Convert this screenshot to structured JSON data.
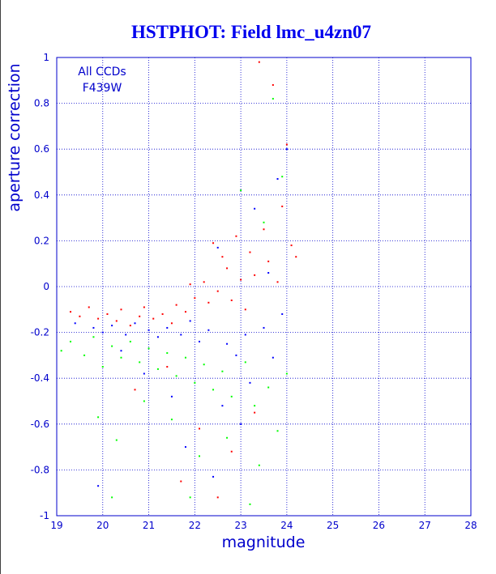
{
  "chart_data": {
    "type": "scatter",
    "title": "HSTPHOT: Field lmc_u4zn07",
    "xlabel": "magnitude",
    "ylabel": "aperture correction",
    "xlim": [
      19,
      28
    ],
    "ylim": [
      -1,
      1
    ],
    "x_ticks": [
      19,
      20,
      21,
      22,
      23,
      24,
      25,
      26,
      27,
      28
    ],
    "y_ticks": [
      -1,
      -0.8,
      -0.6,
      -0.4,
      -0.2,
      0,
      0.2,
      0.4,
      0.6,
      0.8,
      1
    ],
    "x_tick_labels": [
      "19",
      "20",
      "21",
      "22",
      "23",
      "24",
      "25",
      "26",
      "27",
      "28"
    ],
    "y_tick_labels": [
      "-1",
      "-0.8",
      "-0.6",
      "-0.4",
      "-0.2",
      "0",
      "0.2",
      "0.4",
      "0.6",
      "0.8",
      "1"
    ],
    "grid": true,
    "annotations": [
      "All CCDs",
      "F439W"
    ],
    "series_colors": [
      "#ff0000",
      "#0000ff",
      "#00ff00"
    ],
    "series": [
      {
        "points": [
          [
            19.3,
            -0.11
          ],
          [
            19.5,
            -0.13
          ],
          [
            19.7,
            -0.09
          ],
          [
            19.9,
            -0.14
          ],
          [
            20.1,
            -0.12
          ],
          [
            20.3,
            -0.15
          ],
          [
            20.4,
            -0.1
          ],
          [
            20.6,
            -0.17
          ],
          [
            20.8,
            -0.13
          ],
          [
            20.9,
            -0.09
          ],
          [
            21.1,
            -0.14
          ],
          [
            21.3,
            -0.12
          ],
          [
            21.5,
            -0.16
          ],
          [
            21.6,
            -0.08
          ],
          [
            21.8,
            -0.11
          ],
          [
            21.9,
            0.01
          ],
          [
            22.0,
            -0.05
          ],
          [
            22.2,
            0.02
          ],
          [
            22.3,
            -0.07
          ],
          [
            22.4,
            0.19
          ],
          [
            22.5,
            -0.02
          ],
          [
            22.6,
            0.13
          ],
          [
            22.7,
            0.08
          ],
          [
            22.8,
            -0.06
          ],
          [
            22.9,
            0.22
          ],
          [
            23.0,
            0.03
          ],
          [
            23.1,
            -0.1
          ],
          [
            23.2,
            0.15
          ],
          [
            23.3,
            0.05
          ],
          [
            23.4,
            0.98
          ],
          [
            23.5,
            0.25
          ],
          [
            23.6,
            0.11
          ],
          [
            23.7,
            0.88
          ],
          [
            23.8,
            0.02
          ],
          [
            23.9,
            0.35
          ],
          [
            24.0,
            0.62
          ],
          [
            24.1,
            0.18
          ],
          [
            24.2,
            0.13
          ],
          [
            22.1,
            -0.62
          ],
          [
            21.7,
            -0.85
          ],
          [
            22.8,
            -0.72
          ],
          [
            23.3,
            -0.55
          ],
          [
            21.4,
            -0.35
          ],
          [
            20.7,
            -0.45
          ],
          [
            22.5,
            -0.92
          ]
        ]
      },
      {
        "points": [
          [
            19.4,
            -0.16
          ],
          [
            19.8,
            -0.18
          ],
          [
            20.0,
            -0.2
          ],
          [
            20.2,
            -0.17
          ],
          [
            20.5,
            -0.21
          ],
          [
            20.7,
            -0.16
          ],
          [
            21.0,
            -0.19
          ],
          [
            21.2,
            -0.22
          ],
          [
            21.4,
            -0.18
          ],
          [
            21.7,
            -0.21
          ],
          [
            21.9,
            -0.15
          ],
          [
            22.1,
            -0.24
          ],
          [
            22.3,
            -0.19
          ],
          [
            22.5,
            0.17
          ],
          [
            22.7,
            -0.25
          ],
          [
            22.9,
            -0.3
          ],
          [
            23.1,
            -0.21
          ],
          [
            23.3,
            0.34
          ],
          [
            23.5,
            -0.18
          ],
          [
            23.6,
            0.06
          ],
          [
            23.8,
            0.47
          ],
          [
            23.9,
            -0.12
          ],
          [
            24.0,
            0.6
          ],
          [
            23.2,
            -0.42
          ],
          [
            22.6,
            -0.52
          ],
          [
            21.5,
            -0.48
          ],
          [
            20.9,
            -0.38
          ],
          [
            21.8,
            -0.7
          ],
          [
            22.4,
            -0.83
          ],
          [
            23.0,
            -0.6
          ],
          [
            20.4,
            -0.28
          ],
          [
            19.9,
            -0.87
          ],
          [
            23.7,
            -0.31
          ]
        ]
      },
      {
        "points": [
          [
            19.1,
            -0.28
          ],
          [
            19.3,
            -0.24
          ],
          [
            19.6,
            -0.3
          ],
          [
            19.8,
            -0.22
          ],
          [
            20.0,
            -0.35
          ],
          [
            20.2,
            -0.26
          ],
          [
            20.4,
            -0.31
          ],
          [
            20.6,
            -0.24
          ],
          [
            20.8,
            -0.33
          ],
          [
            21.0,
            -0.27
          ],
          [
            21.2,
            -0.36
          ],
          [
            21.4,
            -0.29
          ],
          [
            21.6,
            -0.39
          ],
          [
            21.8,
            -0.31
          ],
          [
            22.0,
            -0.42
          ],
          [
            22.2,
            -0.34
          ],
          [
            22.4,
            -0.45
          ],
          [
            22.6,
            -0.37
          ],
          [
            22.8,
            -0.48
          ],
          [
            23.0,
            0.42
          ],
          [
            23.1,
            -0.33
          ],
          [
            23.3,
            -0.52
          ],
          [
            23.5,
            0.28
          ],
          [
            23.6,
            -0.44
          ],
          [
            23.7,
            0.82
          ],
          [
            23.8,
            -0.63
          ],
          [
            23.9,
            0.48
          ],
          [
            24.0,
            -0.38
          ],
          [
            19.9,
            -0.57
          ],
          [
            20.3,
            -0.67
          ],
          [
            20.9,
            -0.5
          ],
          [
            21.5,
            -0.58
          ],
          [
            22.1,
            -0.74
          ],
          [
            22.7,
            -0.66
          ],
          [
            23.4,
            -0.78
          ],
          [
            21.9,
            -0.92
          ],
          [
            20.2,
            -0.92
          ],
          [
            23.2,
            -0.95
          ]
        ]
      }
    ]
  }
}
